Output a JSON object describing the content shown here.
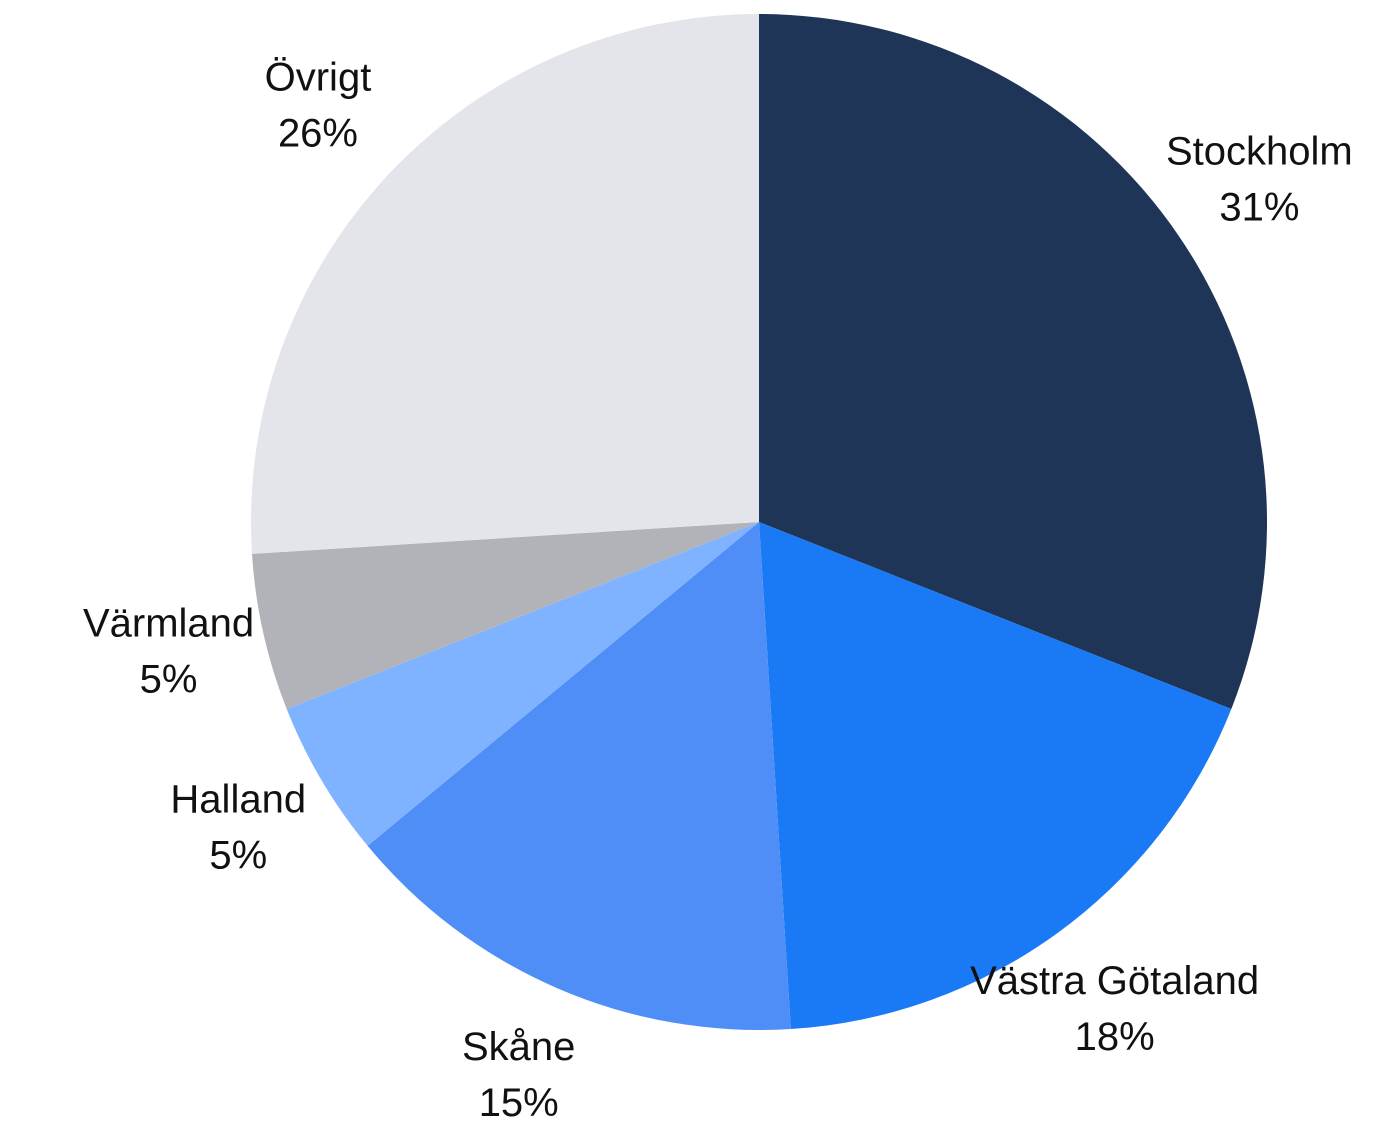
{
  "chart_data": {
    "type": "pie",
    "categories": [
      "Stockholm",
      "Västra Götaland",
      "Skåne",
      "Halland",
      "Värmland",
      "Övrigt"
    ],
    "values": [
      31,
      18,
      15,
      5,
      5,
      26
    ],
    "value_labels": [
      "31%",
      "18%",
      "15%",
      "5%",
      "5%",
      "26%"
    ],
    "colors": [
      "#1f3558",
      "#1a7af5",
      "#4f8ef7",
      "#80b3ff",
      "#b1b3b8",
      "#e4e5eb"
    ]
  }
}
